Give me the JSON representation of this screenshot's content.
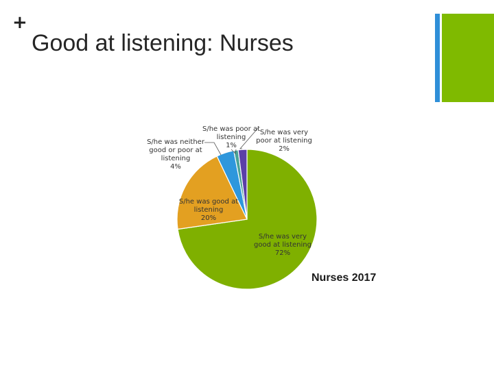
{
  "slide": {
    "plus_symbol": "+",
    "title": "Good at listening: Nurses",
    "caption": "Nurses 2017",
    "accent_colors": {
      "blue": "#2f8fd8",
      "green": "#7fba00"
    }
  },
  "chart_data": {
    "type": "pie",
    "title": "",
    "start": "top, clockwise",
    "slices": [
      {
        "name": "S/he was very good at listening",
        "value": 72,
        "color": "#7fb000",
        "label_lines": [
          "S/he was very",
          "good at listening",
          "72%"
        ]
      },
      {
        "name": "S/he was good at listening",
        "value": 20,
        "color": "#e3a021",
        "label_lines": [
          "S/he was good at",
          "listening",
          "20%"
        ]
      },
      {
        "name": "S/he was neither good or poor at listening",
        "value": 4,
        "color": "#2e97dc",
        "label_lines": [
          "S/he was neither",
          "good or poor at",
          "listening",
          "4%"
        ]
      },
      {
        "name": "S/he was poor at listening",
        "value": 1,
        "color": "#49a397",
        "label_lines": [
          "S/he was poor at",
          "listening",
          "1%"
        ]
      },
      {
        "name": "S/he was very poor at listening",
        "value": 2,
        "color": "#5b3fa7",
        "label_lines": [
          "S/he was very",
          "poor at listening",
          "2%"
        ]
      }
    ]
  }
}
